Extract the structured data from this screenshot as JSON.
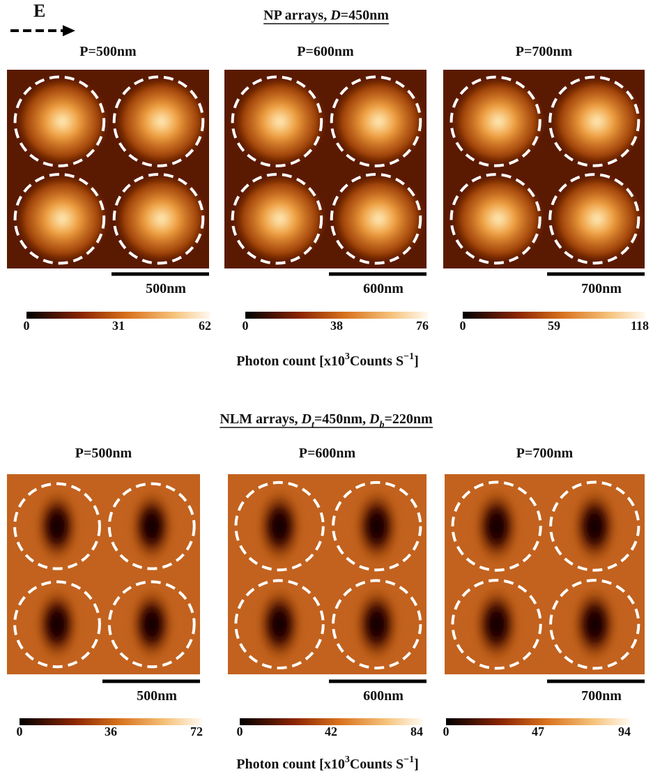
{
  "field_label": "E",
  "sections": [
    {
      "title": [
        "NP arrays, ",
        "D",
        "=450nm"
      ],
      "panels": [
        {
          "label": "P=500nm",
          "scale_bar": "500nm",
          "colorbar_ticks": [
            0,
            31,
            62
          ]
        },
        {
          "label": "P=600nm",
          "scale_bar": "600nm",
          "colorbar_ticks": [
            0,
            38,
            76
          ]
        },
        {
          "label": "P=700nm",
          "scale_bar": "700nm",
          "colorbar_ticks": [
            0,
            59,
            118
          ]
        }
      ],
      "colorbar_label": [
        "Photon count [x10",
        "3",
        "Counts S",
        "−1",
        "]"
      ]
    },
    {
      "title": [
        "NLM arrays, ",
        "D",
        "t",
        "=450nm, ",
        "D",
        "b",
        "=220nm"
      ],
      "panels": [
        {
          "label": "P=500nm",
          "scale_bar": "500nm",
          "colorbar_ticks": [
            0,
            36,
            72
          ]
        },
        {
          "label": "P=600nm",
          "scale_bar": "600nm",
          "colorbar_ticks": [
            0,
            42,
            84
          ]
        },
        {
          "label": "P=700nm",
          "scale_bar": "700nm",
          "colorbar_ticks": [
            0,
            47,
            94
          ]
        }
      ],
      "colorbar_label": [
        "Photon count [x10",
        "3",
        "Counts S",
        "−1",
        "]"
      ]
    }
  ]
}
